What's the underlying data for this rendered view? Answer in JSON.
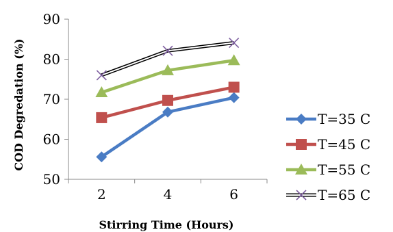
{
  "chart_data": {
    "type": "line",
    "title": "",
    "xlabel": "Stirring Time (Hours)",
    "ylabel": "COD Degredation (%)",
    "x": [
      2,
      4,
      6
    ],
    "x_tick_labels": [
      "2",
      "4",
      "6"
    ],
    "y_tick_labels": [
      "50",
      "60",
      "70",
      "80",
      "90"
    ],
    "ylim": [
      50,
      90
    ],
    "grid": false,
    "legend_position": "right",
    "series": [
      {
        "name": "T=35 C",
        "values": [
          55.6,
          66.8,
          70.4
        ],
        "color": "#4a7cc4",
        "marker": "diamond"
      },
      {
        "name": "T=45 C",
        "values": [
          65.4,
          69.7,
          73.0
        ],
        "color": "#c0504d",
        "marker": "square"
      },
      {
        "name": "T=55 C",
        "values": [
          71.7,
          77.2,
          79.7
        ],
        "color": "#9bbb59",
        "marker": "triangle"
      },
      {
        "name": "T=65 C",
        "values": [
          76.0,
          82.1,
          84.1
        ],
        "color": "#000000",
        "marker": "cross",
        "double_line": true,
        "marker_color": "#7e5fa0"
      }
    ]
  }
}
